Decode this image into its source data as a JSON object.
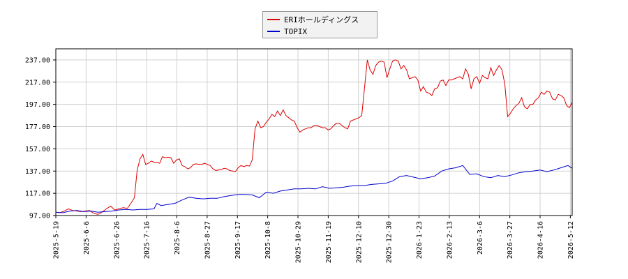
{
  "chart_data": {
    "type": "line",
    "title": "",
    "xlabel": "",
    "ylabel": "",
    "ylim": [
      97,
      247
    ],
    "yticks": [
      "97.00",
      "117.00",
      "137.00",
      "157.00",
      "177.00",
      "197.00",
      "217.00",
      "237.00"
    ],
    "xticks": [
      "2025-5-19",
      "2025-6-6",
      "2025-6-26",
      "2025-7-16",
      "2025-8-6",
      "2025-8-27",
      "2025-9-17",
      "2025-10-8",
      "2025-10-29",
      "2025-11-19",
      "2025-12-10",
      "2025-12-30",
      "2026-1-23",
      "2026-2-13",
      "2026-3-6",
      "2026-3-27",
      "2026-4-16",
      "2026-5-12"
    ],
    "grid": true,
    "legend": "top-center",
    "series": [
      {
        "name": "ERIホールディングス",
        "color": "#dd0000",
        "points": [
          [
            0,
            100.0
          ],
          [
            3,
            99.5
          ],
          [
            6,
            101.0
          ],
          [
            9,
            103.0
          ],
          [
            12,
            101.5
          ],
          [
            15,
            101.0
          ],
          [
            18,
            100.5
          ],
          [
            21,
            101.0
          ],
          [
            24,
            101.5
          ],
          [
            27,
            99.0
          ],
          [
            30,
            98.0
          ],
          [
            33,
            100.0
          ],
          [
            36,
            103.0
          ],
          [
            39,
            105.5
          ],
          [
            42,
            102.0
          ],
          [
            45,
            103.0
          ],
          [
            48,
            104.0
          ],
          [
            51,
            103.5
          ],
          [
            54,
            109.0
          ],
          [
            56,
            113.0
          ],
          [
            58,
            138.0
          ],
          [
            60,
            148.0
          ],
          [
            62,
            152.0
          ],
          [
            64,
            143.0
          ],
          [
            66,
            144.0
          ],
          [
            68,
            146.0
          ],
          [
            70,
            145.0
          ],
          [
            72,
            145.0
          ],
          [
            74,
            144.0
          ],
          [
            76,
            150.0
          ],
          [
            78,
            149.0
          ],
          [
            80,
            149.5
          ],
          [
            82,
            149.0
          ],
          [
            84,
            144.0
          ],
          [
            86,
            147.0
          ],
          [
            88,
            148.0
          ],
          [
            90,
            142.0
          ],
          [
            92,
            141.0
          ],
          [
            94,
            139.0
          ],
          [
            96,
            140.0
          ],
          [
            98,
            143.0
          ],
          [
            100,
            143.5
          ],
          [
            102,
            143.0
          ],
          [
            104,
            143.0
          ],
          [
            106,
            144.0
          ],
          [
            108,
            143.0
          ],
          [
            110,
            142.0
          ],
          [
            112,
            139.0
          ],
          [
            114,
            137.5
          ],
          [
            116,
            138.0
          ],
          [
            118,
            138.5
          ],
          [
            120,
            139.5
          ],
          [
            122,
            139.0
          ],
          [
            124,
            137.5
          ],
          [
            126,
            137.0
          ],
          [
            128,
            136.5
          ],
          [
            130,
            140.0
          ],
          [
            132,
            142.0
          ],
          [
            134,
            141.0
          ],
          [
            136,
            142.0
          ],
          [
            138,
            141.5
          ],
          [
            140,
            147.0
          ],
          [
            142,
            175.0
          ],
          [
            144,
            182.0
          ],
          [
            146,
            176.0
          ],
          [
            148,
            177.0
          ],
          [
            150,
            181.0
          ],
          [
            152,
            184.0
          ],
          [
            154,
            188.0
          ],
          [
            156,
            186.0
          ],
          [
            158,
            191.0
          ],
          [
            160,
            187.0
          ],
          [
            162,
            192.0
          ],
          [
            164,
            187.0
          ],
          [
            166,
            185.0
          ],
          [
            168,
            183.0
          ],
          [
            170,
            182.0
          ],
          [
            172,
            176.0
          ],
          [
            174,
            172.0
          ],
          [
            176,
            174.0
          ],
          [
            178,
            175.0
          ],
          [
            180,
            176.0
          ],
          [
            182,
            176.0
          ],
          [
            184,
            178.0
          ],
          [
            186,
            178.0
          ],
          [
            188,
            177.0
          ],
          [
            190,
            176.0
          ],
          [
            192,
            176.0
          ],
          [
            194,
            174.0
          ],
          [
            196,
            175.0
          ],
          [
            198,
            178.0
          ],
          [
            200,
            180.0
          ],
          [
            202,
            180.0
          ],
          [
            204,
            178.0
          ],
          [
            206,
            176.0
          ],
          [
            208,
            175.0
          ],
          [
            210,
            182.0
          ],
          [
            212,
            183.0
          ],
          [
            214,
            184.0
          ],
          [
            216,
            185.0
          ],
          [
            218,
            187.0
          ],
          [
            220,
            212.0
          ],
          [
            222,
            237.0
          ],
          [
            224,
            228.0
          ],
          [
            226,
            224.0
          ],
          [
            228,
            232.0
          ],
          [
            230,
            235.0
          ],
          [
            232,
            236.0
          ],
          [
            234,
            235.0
          ],
          [
            236,
            221.0
          ],
          [
            238,
            229.0
          ],
          [
            240,
            236.0
          ],
          [
            242,
            237.0
          ],
          [
            244,
            236.0
          ],
          [
            246,
            229.0
          ],
          [
            248,
            232.0
          ],
          [
            250,
            228.0
          ],
          [
            252,
            220.0
          ],
          [
            254,
            221.0
          ],
          [
            256,
            222.0
          ],
          [
            258,
            219.0
          ],
          [
            260,
            209.0
          ],
          [
            262,
            213.0
          ],
          [
            264,
            208.0
          ],
          [
            266,
            207.0
          ],
          [
            268,
            205.0
          ],
          [
            270,
            211.0
          ],
          [
            272,
            212.0
          ],
          [
            274,
            218.0
          ],
          [
            276,
            219.0
          ],
          [
            278,
            214.0
          ],
          [
            280,
            219.0
          ],
          [
            282,
            219.0
          ],
          [
            284,
            220.0
          ],
          [
            286,
            221.0
          ],
          [
            288,
            222.0
          ],
          [
            290,
            220.0
          ],
          [
            292,
            229.0
          ],
          [
            294,
            224.0
          ],
          [
            296,
            211.0
          ],
          [
            298,
            220.0
          ],
          [
            300,
            222.0
          ],
          [
            302,
            216.0
          ],
          [
            304,
            223.0
          ],
          [
            306,
            221.0
          ],
          [
            308,
            220.0
          ],
          [
            310,
            230.0
          ],
          [
            312,
            223.0
          ],
          [
            314,
            228.0
          ],
          [
            316,
            232.0
          ],
          [
            318,
            228.0
          ],
          [
            320,
            215.0
          ],
          [
            322,
            186.0
          ],
          [
            324,
            189.0
          ],
          [
            326,
            193.0
          ],
          [
            328,
            196.0
          ],
          [
            330,
            198.0
          ],
          [
            332,
            203.0
          ],
          [
            334,
            195.0
          ],
          [
            336,
            193.0
          ],
          [
            338,
            197.0
          ],
          [
            340,
            197.0
          ],
          [
            342,
            201.0
          ],
          [
            344,
            203.0
          ],
          [
            346,
            208.0
          ],
          [
            348,
            206.0
          ],
          [
            350,
            209.0
          ],
          [
            352,
            208.0
          ],
          [
            354,
            202.0
          ],
          [
            356,
            201.0
          ],
          [
            358,
            206.0
          ],
          [
            360,
            205.0
          ],
          [
            362,
            203.0
          ],
          [
            364,
            196.0
          ],
          [
            366,
            194.0
          ],
          [
            368,
            199.0
          ]
        ]
      },
      {
        "name": "TOPIX",
        "color": "#0000cc",
        "points": [
          [
            0,
            100.0
          ],
          [
            5,
            99.5
          ],
          [
            10,
            101.0
          ],
          [
            15,
            101.5
          ],
          [
            20,
            100.5
          ],
          [
            25,
            101.0
          ],
          [
            30,
            100.0
          ],
          [
            35,
            100.5
          ],
          [
            40,
            101.0
          ],
          [
            45,
            102.0
          ],
          [
            50,
            102.5
          ],
          [
            55,
            102.0
          ],
          [
            60,
            102.5
          ],
          [
            65,
            102.5
          ],
          [
            70,
            103.0
          ],
          [
            72,
            108.0
          ],
          [
            75,
            106.0
          ],
          [
            80,
            107.0
          ],
          [
            85,
            108.0
          ],
          [
            90,
            111.0
          ],
          [
            95,
            113.5
          ],
          [
            100,
            112.5
          ],
          [
            105,
            112.0
          ],
          [
            110,
            112.5
          ],
          [
            115,
            112.5
          ],
          [
            120,
            114.0
          ],
          [
            125,
            115.0
          ],
          [
            130,
            116.0
          ],
          [
            135,
            116.0
          ],
          [
            140,
            115.5
          ],
          [
            145,
            113.0
          ],
          [
            150,
            118.0
          ],
          [
            155,
            117.0
          ],
          [
            160,
            119.0
          ],
          [
            165,
            120.0
          ],
          [
            170,
            121.0
          ],
          [
            175,
            121.0
          ],
          [
            180,
            121.5
          ],
          [
            185,
            121.0
          ],
          [
            190,
            123.0
          ],
          [
            195,
            121.5
          ],
          [
            200,
            122.0
          ],
          [
            205,
            122.5
          ],
          [
            210,
            123.5
          ],
          [
            215,
            124.0
          ],
          [
            220,
            124.0
          ],
          [
            225,
            125.0
          ],
          [
            230,
            125.5
          ],
          [
            235,
            126.0
          ],
          [
            240,
            128.0
          ],
          [
            245,
            132.0
          ],
          [
            250,
            133.0
          ],
          [
            255,
            131.5
          ],
          [
            260,
            130.0
          ],
          [
            265,
            131.0
          ],
          [
            270,
            132.5
          ],
          [
            275,
            137.0
          ],
          [
            280,
            139.0
          ],
          [
            285,
            140.0
          ],
          [
            290,
            142.0
          ],
          [
            295,
            134.0
          ],
          [
            300,
            134.5
          ],
          [
            305,
            132.0
          ],
          [
            310,
            131.0
          ],
          [
            315,
            133.0
          ],
          [
            320,
            132.0
          ],
          [
            325,
            133.5
          ],
          [
            330,
            135.5
          ],
          [
            335,
            136.5
          ],
          [
            340,
            137.0
          ],
          [
            345,
            138.0
          ],
          [
            350,
            136.5
          ],
          [
            355,
            138.0
          ],
          [
            360,
            140.0
          ],
          [
            365,
            142.0
          ],
          [
            368,
            139.5
          ]
        ]
      }
    ]
  }
}
